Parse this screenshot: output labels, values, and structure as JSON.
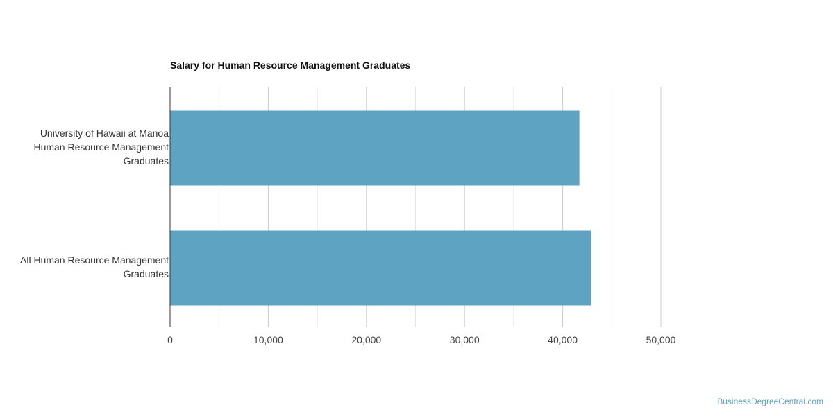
{
  "chart_data": {
    "type": "bar",
    "orientation": "horizontal",
    "title": "Salary for Human Resource Management Graduates",
    "categories": [
      [
        "University of Hawaii at Manoa",
        "Human Resource Management",
        "Graduates"
      ],
      [
        "All Human Resource Management",
        "Graduates"
      ]
    ],
    "values": [
      41700,
      42900
    ],
    "xlim": [
      0,
      50000
    ],
    "xticks": [
      "0",
      "10,000",
      "20,000",
      "30,000",
      "40,000",
      "50,000"
    ],
    "grid": true,
    "bar_color": "#5ea3c1"
  },
  "watermark": "BusinessDegreeCentral.com"
}
